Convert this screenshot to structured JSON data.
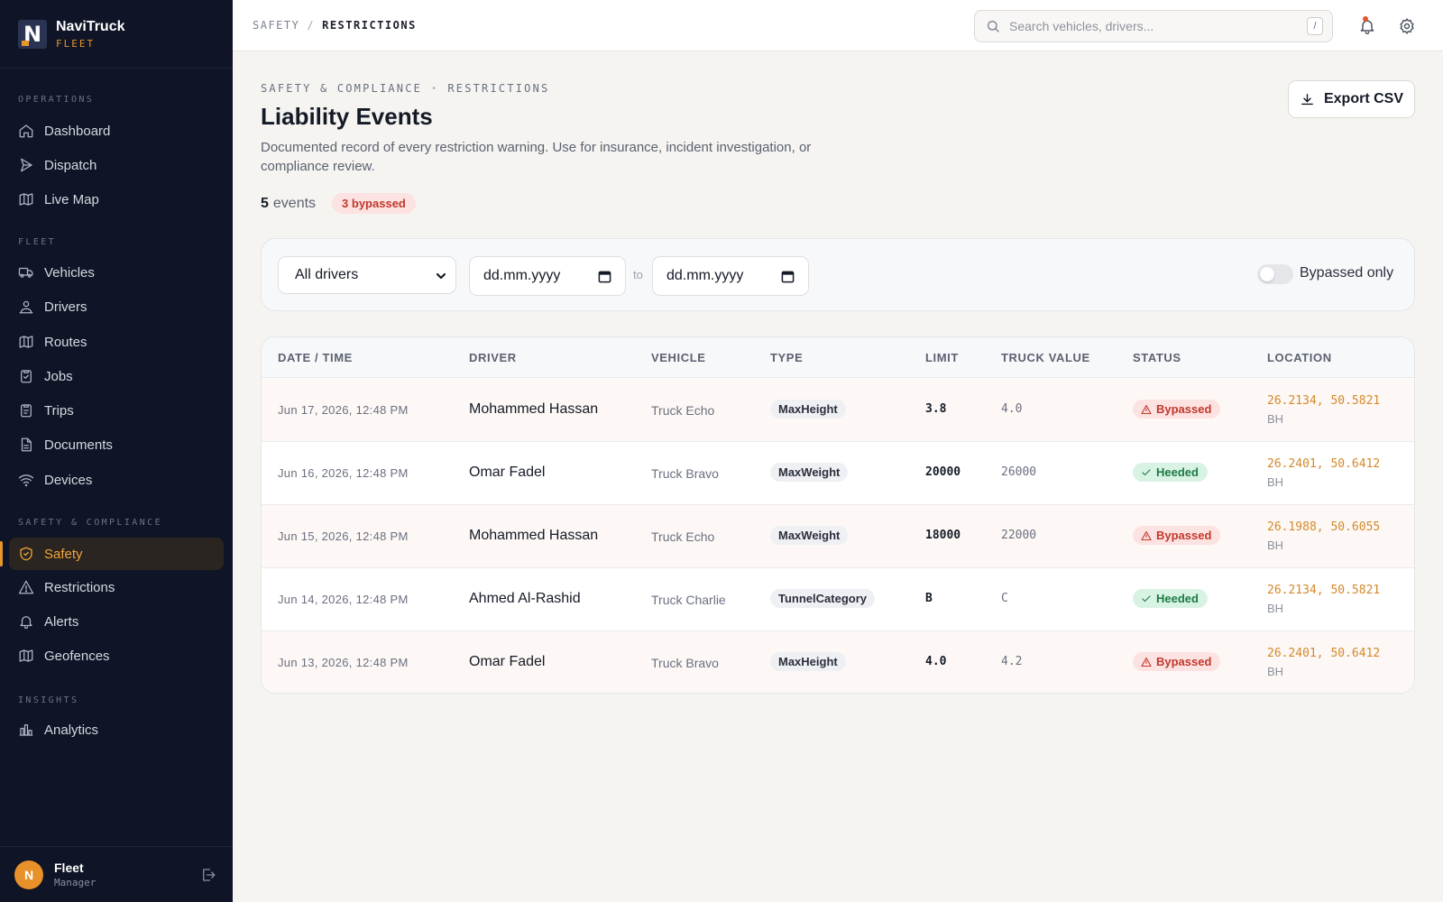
{
  "brand": {
    "name": "NaviTruck",
    "sub": "FLEET",
    "logo_letter": "N"
  },
  "sidebar": {
    "sections": [
      {
        "label": "OPERATIONS"
      },
      {
        "label": "FLEET"
      },
      {
        "label": "SAFETY & COMPLIANCE"
      },
      {
        "label": "INSIGHTS"
      }
    ],
    "items": [
      {
        "label": "Dashboard",
        "icon": "home-icon"
      },
      {
        "label": "Dispatch",
        "icon": "send-icon"
      },
      {
        "label": "Live Map",
        "icon": "map-icon"
      },
      {
        "label": "Vehicles",
        "icon": "truck-icon"
      },
      {
        "label": "Drivers",
        "icon": "user-icon"
      },
      {
        "label": "Routes",
        "icon": "map-icon"
      },
      {
        "label": "Jobs",
        "icon": "clipboard-icon"
      },
      {
        "label": "Trips",
        "icon": "clipboard-icon"
      },
      {
        "label": "Documents",
        "icon": "file-icon"
      },
      {
        "label": "Devices",
        "icon": "wifi-icon"
      },
      {
        "label": "Safety",
        "icon": "shield-icon",
        "active": true
      },
      {
        "label": "Restrictions",
        "icon": "warning-icon"
      },
      {
        "label": "Alerts",
        "icon": "bell-icon"
      },
      {
        "label": "Geofences",
        "icon": "map-icon"
      },
      {
        "label": "Analytics",
        "icon": "bar-chart-icon"
      }
    ],
    "user": {
      "initial": "N",
      "name": "Fleet",
      "role": "Manager"
    }
  },
  "topbar": {
    "breadcrumb": [
      "SAFETY",
      "RESTRICTIONS"
    ],
    "breadcrumb_sep": "/",
    "search_placeholder": "Search vehicles, drivers...",
    "search_shortcut": "/"
  },
  "page": {
    "eyebrow": "SAFETY & COMPLIANCE · RESTRICTIONS",
    "title": "Liability Events",
    "description": "Documented record of every restriction warning. Use for insurance, incident investigation, or compliance review.",
    "event_count": "5",
    "event_label": "events",
    "bypassed_badge": "3 bypassed",
    "export_label": "Export CSV"
  },
  "filters": {
    "driver_select": "All drivers",
    "date_from_placeholder": "dd.mm.yyyy",
    "date_to_placeholder": "dd.mm.yyyy",
    "to_label": "to",
    "bypassed_only_label": "Bypassed only",
    "bypassed_only_on": false
  },
  "table": {
    "columns": [
      "DATE / TIME",
      "DRIVER",
      "VEHICLE",
      "TYPE",
      "LIMIT",
      "TRUCK VALUE",
      "STATUS",
      "LOCATION"
    ],
    "rows": [
      {
        "datetime": "Jun 17, 2026, 12:48 PM",
        "driver": "Mohammed Hassan",
        "vehicle": "Truck Echo",
        "type": "MaxHeight",
        "limit": "3.8",
        "truck_value": "4.0",
        "status": "Bypassed",
        "coords": "26.2134, 50.5821",
        "country": "BH"
      },
      {
        "datetime": "Jun 16, 2026, 12:48 PM",
        "driver": "Omar Fadel",
        "vehicle": "Truck Bravo",
        "type": "MaxWeight",
        "limit": "20000",
        "truck_value": "26000",
        "status": "Heeded",
        "coords": "26.2401, 50.6412",
        "country": "BH"
      },
      {
        "datetime": "Jun 15, 2026, 12:48 PM",
        "driver": "Mohammed Hassan",
        "vehicle": "Truck Echo",
        "type": "MaxWeight",
        "limit": "18000",
        "truck_value": "22000",
        "status": "Bypassed",
        "coords": "26.1988, 50.6055",
        "country": "BH"
      },
      {
        "datetime": "Jun 14, 2026, 12:48 PM",
        "driver": "Ahmed Al-Rashid",
        "vehicle": "Truck Charlie",
        "type": "TunnelCategory",
        "limit": "B",
        "truck_value": "C",
        "status": "Heeded",
        "coords": "26.2134, 50.5821",
        "country": "BH"
      },
      {
        "datetime": "Jun 13, 2026, 12:48 PM",
        "driver": "Omar Fadel",
        "vehicle": "Truck Bravo",
        "type": "MaxHeight",
        "limit": "4.0",
        "truck_value": "4.2",
        "status": "Bypassed",
        "coords": "26.2401, 50.6412",
        "country": "BH"
      }
    ]
  },
  "colors": {
    "accent": "#e6962a",
    "sidebar_bg": "#0f1526",
    "bypassed": "#c0392b",
    "heeded": "#1e7a45"
  }
}
